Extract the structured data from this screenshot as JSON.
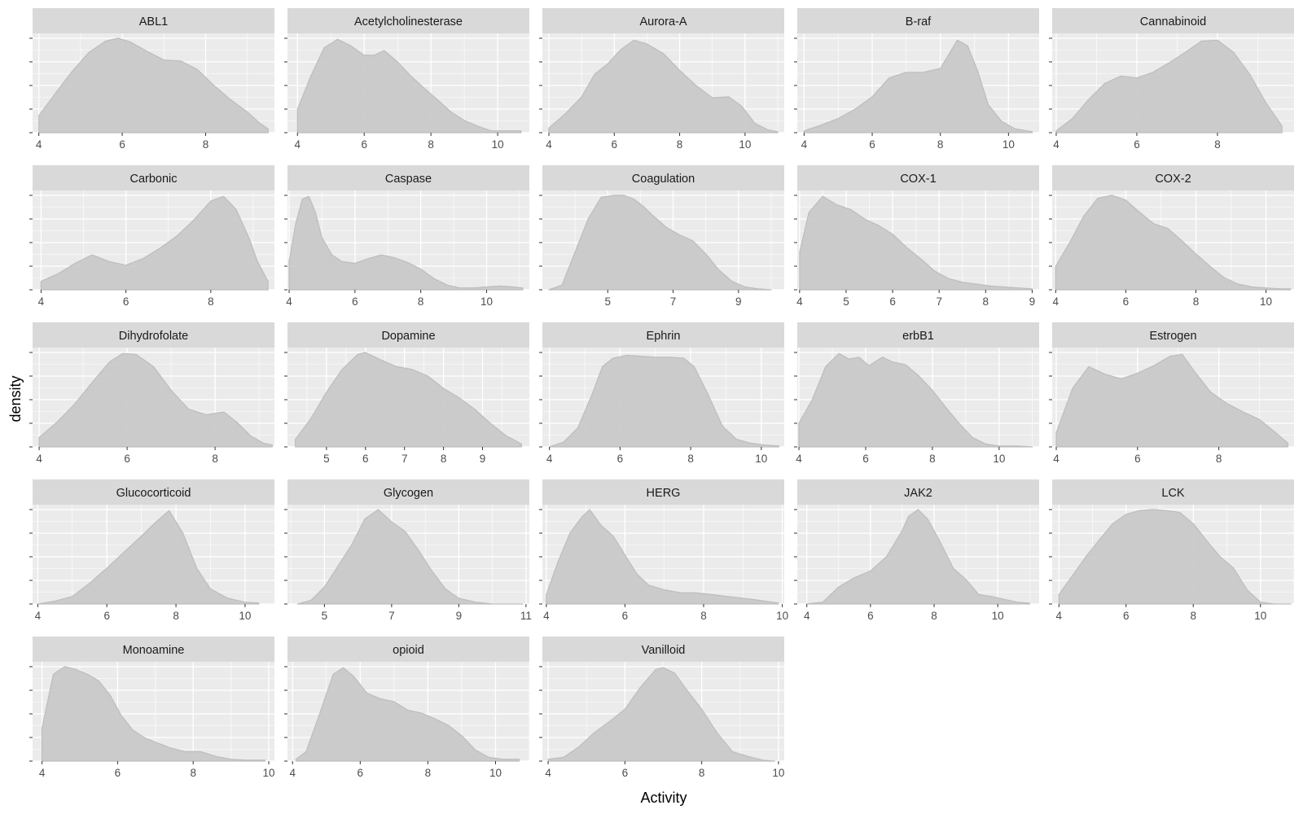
{
  "chart_data": {
    "type": "area",
    "subtype": "faceted density",
    "xlabel": "Activity",
    "ylabel": "density",
    "y_tick_labels_shown": false,
    "grid": true,
    "legend": "none",
    "colors": {
      "panel_bg": "#ebebeb",
      "strip_bg": "#d9d9d9",
      "grid": "#ffffff",
      "fill": "#c8c8c8",
      "outline": "#bdbdbd"
    },
    "facets": [
      {
        "name": "ABL1",
        "xlim": [
          3.85,
          9.65
        ],
        "xticks": [
          4,
          6,
          8
        ],
        "x": [
          4.0,
          4.4,
          4.8,
          5.2,
          5.6,
          5.9,
          6.2,
          6.6,
          7.0,
          7.4,
          7.8,
          8.2,
          8.6,
          9.0,
          9.3,
          9.5
        ],
        "density": [
          0.18,
          0.42,
          0.65,
          0.85,
          0.97,
          1.0,
          0.96,
          0.86,
          0.77,
          0.76,
          0.67,
          0.5,
          0.35,
          0.22,
          0.1,
          0.04
        ]
      },
      {
        "name": "Acetylcholinesterase",
        "xlim": [
          3.7,
          10.95
        ],
        "xticks": [
          4,
          6,
          8,
          10
        ],
        "x": [
          4.0,
          4.4,
          4.8,
          5.2,
          5.6,
          6.0,
          6.3,
          6.6,
          7.0,
          7.4,
          7.8,
          8.2,
          8.6,
          9.0,
          9.4,
          9.8,
          10.2,
          10.7
        ],
        "density": [
          0.25,
          0.6,
          0.9,
          0.99,
          0.92,
          0.82,
          0.82,
          0.87,
          0.75,
          0.6,
          0.47,
          0.35,
          0.22,
          0.13,
          0.07,
          0.02,
          0.02,
          0.02
        ]
      },
      {
        "name": "Aurora-A",
        "xlim": [
          3.8,
          11.2
        ],
        "xticks": [
          4,
          6,
          8,
          10
        ],
        "x": [
          4.0,
          4.5,
          5.0,
          5.4,
          5.8,
          6.2,
          6.6,
          7.0,
          7.5,
          8.0,
          8.5,
          9.0,
          9.5,
          9.9,
          10.3,
          10.7,
          11.0
        ],
        "density": [
          0.05,
          0.2,
          0.38,
          0.62,
          0.73,
          0.88,
          0.98,
          0.94,
          0.84,
          0.66,
          0.5,
          0.37,
          0.38,
          0.28,
          0.1,
          0.03,
          0.01
        ]
      },
      {
        "name": "B-raf",
        "xlim": [
          3.8,
          10.9
        ],
        "xticks": [
          4,
          6,
          8,
          10
        ],
        "x": [
          4.0,
          4.5,
          5.0,
          5.5,
          6.0,
          6.5,
          7.0,
          7.5,
          8.0,
          8.3,
          8.5,
          8.8,
          9.1,
          9.4,
          9.8,
          10.2,
          10.7
        ],
        "density": [
          0.02,
          0.08,
          0.15,
          0.25,
          0.38,
          0.58,
          0.64,
          0.64,
          0.68,
          0.86,
          0.98,
          0.92,
          0.65,
          0.3,
          0.12,
          0.04,
          0.01
        ]
      },
      {
        "name": "Cannabinoid",
        "xlim": [
          3.9,
          9.9
        ],
        "xticks": [
          4,
          6,
          8
        ],
        "x": [
          4.0,
          4.4,
          4.8,
          5.2,
          5.6,
          6.0,
          6.4,
          6.8,
          7.2,
          7.6,
          8.0,
          8.4,
          8.8,
          9.2,
          9.6
        ],
        "density": [
          0.02,
          0.15,
          0.35,
          0.52,
          0.6,
          0.58,
          0.64,
          0.74,
          0.85,
          0.97,
          0.98,
          0.85,
          0.62,
          0.32,
          0.07
        ]
      },
      {
        "name": "Carbonic",
        "xlim": [
          3.8,
          9.5
        ],
        "xticks": [
          4,
          6,
          8
        ],
        "x": [
          4.0,
          4.4,
          4.8,
          5.2,
          5.6,
          6.0,
          6.4,
          6.8,
          7.2,
          7.6,
          8.0,
          8.3,
          8.6,
          8.9,
          9.1,
          9.35
        ],
        "density": [
          0.09,
          0.17,
          0.28,
          0.37,
          0.3,
          0.26,
          0.33,
          0.44,
          0.57,
          0.74,
          0.94,
          0.99,
          0.85,
          0.55,
          0.3,
          0.09
        ]
      },
      {
        "name": "Caspase",
        "xlim": [
          3.95,
          11.3
        ],
        "xticks": [
          4,
          6,
          8,
          10
        ],
        "x": [
          4.0,
          4.2,
          4.4,
          4.6,
          4.8,
          5.0,
          5.3,
          5.6,
          6.0,
          6.4,
          6.8,
          7.2,
          7.6,
          8.0,
          8.4,
          8.8,
          9.2,
          9.6,
          10.0,
          10.4,
          10.8,
          11.1
        ],
        "density": [
          0.3,
          0.7,
          0.96,
          0.99,
          0.82,
          0.55,
          0.37,
          0.3,
          0.28,
          0.33,
          0.37,
          0.34,
          0.29,
          0.22,
          0.12,
          0.05,
          0.02,
          0.02,
          0.03,
          0.04,
          0.03,
          0.02
        ]
      },
      {
        "name": "Coagulation",
        "xlim": [
          3.0,
          10.4
        ],
        "xticks": [
          5,
          7,
          9
        ],
        "x": [
          3.2,
          3.6,
          4.0,
          4.4,
          4.8,
          5.2,
          5.5,
          5.8,
          6.1,
          6.4,
          6.8,
          7.2,
          7.6,
          8.0,
          8.4,
          8.8,
          9.2,
          9.6,
          10.0
        ],
        "density": [
          0.0,
          0.05,
          0.4,
          0.75,
          0.98,
          1.0,
          1.0,
          0.96,
          0.88,
          0.78,
          0.66,
          0.58,
          0.52,
          0.38,
          0.21,
          0.09,
          0.03,
          0.01,
          0.0
        ]
      },
      {
        "name": "COX-1",
        "xlim": [
          3.95,
          9.15
        ],
        "xticks": [
          4,
          5,
          6,
          7,
          8,
          9
        ],
        "x": [
          4.0,
          4.2,
          4.5,
          4.8,
          5.1,
          5.4,
          5.7,
          6.0,
          6.3,
          6.6,
          6.9,
          7.2,
          7.5,
          7.8,
          8.1,
          8.4,
          8.7,
          9.0
        ],
        "density": [
          0.4,
          0.82,
          0.99,
          0.9,
          0.85,
          0.75,
          0.68,
          0.59,
          0.45,
          0.33,
          0.2,
          0.12,
          0.08,
          0.06,
          0.04,
          0.03,
          0.02,
          0.01
        ]
      },
      {
        "name": "COX-2",
        "xlim": [
          3.9,
          10.8
        ],
        "xticks": [
          4,
          6,
          8,
          10
        ],
        "x": [
          4.0,
          4.4,
          4.8,
          5.2,
          5.6,
          6.0,
          6.4,
          6.8,
          7.2,
          7.6,
          8.0,
          8.4,
          8.8,
          9.2,
          9.6,
          10.0,
          10.4,
          10.7
        ],
        "density": [
          0.25,
          0.5,
          0.78,
          0.97,
          1.0,
          0.95,
          0.82,
          0.7,
          0.65,
          0.52,
          0.38,
          0.25,
          0.13,
          0.06,
          0.03,
          0.02,
          0.01,
          0.01
        ]
      },
      {
        "name": "Dihydrofolate",
        "xlim": [
          3.85,
          9.35
        ],
        "xticks": [
          4,
          6,
          8
        ],
        "x": [
          4.0,
          4.4,
          4.8,
          5.2,
          5.6,
          5.9,
          6.2,
          6.6,
          7.0,
          7.4,
          7.8,
          8.2,
          8.5,
          8.8,
          9.1,
          9.3
        ],
        "density": [
          0.1,
          0.26,
          0.45,
          0.68,
          0.9,
          0.99,
          0.98,
          0.85,
          0.6,
          0.4,
          0.34,
          0.37,
          0.26,
          0.12,
          0.04,
          0.02
        ]
      },
      {
        "name": "Dopamine",
        "xlim": [
          4.0,
          10.2
        ],
        "xticks": [
          5,
          6,
          7,
          8,
          9
        ],
        "x": [
          4.2,
          4.6,
          5.0,
          5.4,
          5.8,
          6.0,
          6.4,
          6.8,
          7.2,
          7.6,
          8.0,
          8.4,
          8.8,
          9.2,
          9.6,
          10.0
        ],
        "density": [
          0.08,
          0.3,
          0.58,
          0.82,
          0.98,
          1.0,
          0.92,
          0.85,
          0.82,
          0.75,
          0.62,
          0.52,
          0.4,
          0.25,
          0.12,
          0.03
        ]
      },
      {
        "name": "Ephrin",
        "xlim": [
          3.8,
          10.65
        ],
        "xticks": [
          4,
          6,
          8,
          10
        ],
        "x": [
          4.0,
          4.4,
          4.8,
          5.2,
          5.5,
          5.8,
          6.2,
          6.6,
          7.0,
          7.4,
          7.8,
          8.1,
          8.5,
          8.9,
          9.3,
          9.7,
          10.1,
          10.5
        ],
        "density": [
          0.0,
          0.05,
          0.2,
          0.55,
          0.85,
          0.94,
          0.97,
          0.96,
          0.95,
          0.95,
          0.94,
          0.85,
          0.55,
          0.22,
          0.08,
          0.04,
          0.02,
          0.01
        ]
      },
      {
        "name": "erbB1",
        "xlim": [
          3.95,
          11.2
        ],
        "xticks": [
          4,
          6,
          8,
          10
        ],
        "x": [
          4.0,
          4.4,
          4.8,
          5.2,
          5.5,
          5.8,
          6.1,
          6.5,
          6.8,
          7.2,
          7.6,
          8.0,
          8.4,
          8.8,
          9.2,
          9.6,
          10.0,
          10.5,
          11.0
        ],
        "density": [
          0.25,
          0.5,
          0.85,
          0.99,
          0.93,
          0.95,
          0.86,
          0.95,
          0.9,
          0.87,
          0.75,
          0.6,
          0.42,
          0.25,
          0.1,
          0.03,
          0.01,
          0.01,
          0.0
        ]
      },
      {
        "name": "Estrogen",
        "xlim": [
          3.9,
          9.85
        ],
        "xticks": [
          4,
          6,
          8
        ],
        "x": [
          4.0,
          4.4,
          4.8,
          5.2,
          5.6,
          6.0,
          6.4,
          6.8,
          7.1,
          7.4,
          7.8,
          8.2,
          8.6,
          9.0,
          9.4,
          9.7
        ],
        "density": [
          0.15,
          0.62,
          0.85,
          0.77,
          0.72,
          0.78,
          0.86,
          0.96,
          0.98,
          0.8,
          0.58,
          0.46,
          0.37,
          0.29,
          0.15,
          0.04
        ]
      },
      {
        "name": "Glucocorticoid",
        "xlim": [
          3.85,
          10.85
        ],
        "xticks": [
          4,
          6,
          8,
          10
        ],
        "x": [
          4.0,
          4.5,
          5.0,
          5.5,
          6.0,
          6.5,
          7.0,
          7.4,
          7.8,
          8.2,
          8.6,
          9.0,
          9.5,
          10.0,
          10.4
        ],
        "density": [
          0.0,
          0.03,
          0.08,
          0.22,
          0.38,
          0.55,
          0.72,
          0.86,
          0.99,
          0.75,
          0.38,
          0.16,
          0.06,
          0.02,
          0.01
        ]
      },
      {
        "name": "Glycogen",
        "xlim": [
          3.9,
          11.1
        ],
        "xticks": [
          5,
          7,
          9,
          11
        ],
        "x": [
          4.2,
          4.6,
          5.0,
          5.4,
          5.8,
          6.2,
          6.6,
          7.0,
          7.4,
          7.8,
          8.2,
          8.6,
          9.0,
          9.5,
          10.0,
          10.5,
          10.9
        ],
        "density": [
          0.0,
          0.04,
          0.18,
          0.4,
          0.62,
          0.9,
          1.0,
          0.87,
          0.77,
          0.57,
          0.35,
          0.16,
          0.06,
          0.02,
          0.0,
          0.0,
          0.0
        ]
      },
      {
        "name": "HERG",
        "xlim": [
          3.9,
          10.05
        ],
        "xticks": [
          4,
          6,
          8,
          10
        ],
        "x": [
          4.0,
          4.3,
          4.6,
          4.9,
          5.1,
          5.4,
          5.7,
          6.0,
          6.3,
          6.6,
          7.0,
          7.4,
          7.8,
          8.2,
          8.6,
          9.0,
          9.4,
          9.9
        ],
        "density": [
          0.1,
          0.45,
          0.75,
          0.92,
          1.0,
          0.83,
          0.72,
          0.52,
          0.32,
          0.2,
          0.15,
          0.12,
          0.12,
          0.1,
          0.08,
          0.06,
          0.04,
          0.01
        ]
      },
      {
        "name": "JAK2",
        "xlim": [
          3.7,
          11.3
        ],
        "xticks": [
          4,
          6,
          8,
          10
        ],
        "x": [
          4.0,
          4.5,
          5.0,
          5.5,
          6.0,
          6.5,
          7.0,
          7.2,
          7.5,
          7.8,
          8.2,
          8.6,
          9.0,
          9.4,
          9.8,
          10.2,
          10.6,
          11.0
        ],
        "density": [
          0.0,
          0.02,
          0.18,
          0.28,
          0.35,
          0.5,
          0.78,
          0.93,
          1.0,
          0.9,
          0.65,
          0.38,
          0.26,
          0.1,
          0.08,
          0.05,
          0.02,
          0.01
        ]
      },
      {
        "name": "LCK",
        "xlim": [
          3.8,
          11.0
        ],
        "xticks": [
          4,
          6,
          8,
          10
        ],
        "x": [
          4.0,
          4.4,
          4.8,
          5.2,
          5.6,
          6.0,
          6.4,
          6.8,
          7.2,
          7.6,
          8.0,
          8.4,
          8.8,
          9.2,
          9.6,
          10.0,
          10.4,
          10.9
        ],
        "density": [
          0.1,
          0.3,
          0.5,
          0.68,
          0.85,
          0.95,
          0.99,
          1.0,
          0.99,
          0.97,
          0.85,
          0.67,
          0.5,
          0.38,
          0.15,
          0.02,
          0.0,
          0.0
        ]
      },
      {
        "name": "Monoamine",
        "xlim": [
          3.75,
          10.15
        ],
        "xticks": [
          4,
          6,
          8,
          10
        ],
        "x": [
          4.0,
          4.3,
          4.6,
          4.9,
          5.2,
          5.5,
          5.8,
          6.1,
          6.4,
          6.7,
          7.0,
          7.4,
          7.8,
          8.2,
          8.6,
          9.0,
          9.4,
          9.9
        ],
        "density": [
          0.35,
          0.92,
          1.0,
          0.97,
          0.92,
          0.85,
          0.7,
          0.48,
          0.33,
          0.25,
          0.2,
          0.14,
          0.1,
          0.1,
          0.05,
          0.02,
          0.01,
          0.01
        ]
      },
      {
        "name": "opioid",
        "xlim": [
          3.85,
          11.0
        ],
        "xticks": [
          4,
          6,
          8,
          10
        ],
        "x": [
          4.1,
          4.4,
          4.8,
          5.2,
          5.5,
          5.8,
          6.2,
          6.6,
          7.0,
          7.4,
          7.8,
          8.2,
          8.6,
          9.0,
          9.4,
          9.8,
          10.2,
          10.7
        ],
        "density": [
          0.02,
          0.1,
          0.5,
          0.92,
          0.99,
          0.9,
          0.72,
          0.66,
          0.63,
          0.54,
          0.51,
          0.45,
          0.38,
          0.27,
          0.12,
          0.04,
          0.02,
          0.02
        ]
      },
      {
        "name": "Vanilloid",
        "xlim": [
          3.85,
          10.15
        ],
        "xticks": [
          4,
          6,
          8,
          10
        ],
        "x": [
          4.0,
          4.4,
          4.8,
          5.2,
          5.6,
          6.0,
          6.4,
          6.8,
          7.0,
          7.3,
          7.6,
          8.0,
          8.4,
          8.8,
          9.2,
          9.6,
          9.9
        ],
        "density": [
          0.02,
          0.04,
          0.15,
          0.3,
          0.42,
          0.55,
          0.78,
          0.97,
          0.99,
          0.93,
          0.76,
          0.55,
          0.3,
          0.1,
          0.05,
          0.01,
          0.0
        ]
      }
    ]
  }
}
